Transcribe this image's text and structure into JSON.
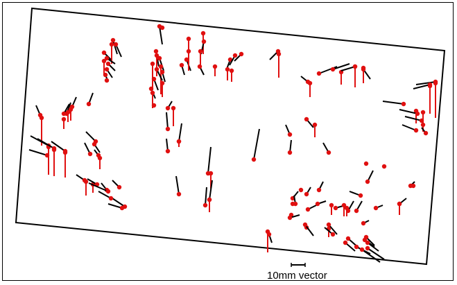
{
  "scale_bar": {
    "label": "10mm vector"
  },
  "colors": {
    "outline": "#000000",
    "point": "#e01010",
    "vector_black": "#000000",
    "vector_red": "#e01010"
  },
  "vectors": [
    {
      "id": "v1"
    },
    {
      "id": "v2"
    },
    {
      "id": "v3"
    },
    {
      "id": "v4"
    },
    {
      "id": "v5"
    },
    {
      "id": "v6"
    },
    {
      "id": "v7"
    },
    {
      "id": "v8"
    },
    {
      "id": "v9"
    },
    {
      "id": "v10"
    },
    {
      "id": "v11"
    },
    {
      "id": "v12"
    },
    {
      "id": "v13"
    },
    {
      "id": "v14"
    },
    {
      "id": "v15"
    },
    {
      "id": "v16"
    },
    {
      "id": "v17"
    },
    {
      "id": "v18"
    },
    {
      "id": "v19"
    },
    {
      "id": "v20"
    },
    {
      "id": "v21"
    },
    {
      "id": "v22"
    },
    {
      "id": "v23"
    },
    {
      "id": "v24"
    },
    {
      "id": "v25"
    },
    {
      "id": "v26"
    },
    {
      "id": "v27"
    },
    {
      "id": "v28"
    },
    {
      "id": "v29"
    },
    {
      "id": "v30"
    },
    {
      "id": "v31"
    },
    {
      "id": "v32"
    },
    {
      "id": "v33"
    },
    {
      "id": "v34"
    },
    {
      "id": "v35"
    },
    {
      "id": "v36"
    },
    {
      "id": "v37"
    },
    {
      "id": "v38"
    },
    {
      "id": "v39"
    },
    {
      "id": "v40"
    },
    {
      "id": "v41"
    },
    {
      "id": "v42"
    },
    {
      "id": "v43"
    },
    {
      "id": "v44"
    },
    {
      "id": "v45"
    },
    {
      "id": "v46"
    },
    {
      "id": "v47"
    },
    {
      "id": "v48"
    },
    {
      "id": "v49"
    },
    {
      "id": "v50"
    },
    {
      "id": "v51"
    },
    {
      "id": "v52"
    },
    {
      "id": "v53"
    },
    {
      "id": "v54"
    },
    {
      "id": "v55"
    },
    {
      "id": "v56"
    },
    {
      "id": "v57"
    },
    {
      "id": "v58"
    },
    {
      "id": "v59"
    },
    {
      "id": "v60"
    },
    {
      "id": "v61"
    },
    {
      "id": "v62"
    },
    {
      "id": "v63"
    },
    {
      "id": "v64"
    },
    {
      "id": "v65"
    },
    {
      "id": "v66"
    },
    {
      "id": "v67"
    },
    {
      "id": "v68"
    },
    {
      "id": "v69"
    },
    {
      "id": "v70"
    },
    {
      "id": "v71"
    },
    {
      "id": "v72"
    },
    {
      "id": "v73"
    },
    {
      "id": "v74"
    },
    {
      "id": "v75"
    },
    {
      "id": "v76"
    },
    {
      "id": "v77"
    },
    {
      "id": "v78"
    },
    {
      "id": "v79"
    },
    {
      "id": "v80"
    },
    {
      "id": "v81"
    },
    {
      "id": "v82"
    },
    {
      "id": "v83"
    },
    {
      "id": "v84"
    },
    {
      "id": "v85"
    },
    {
      "id": "v86"
    },
    {
      "id": "v87"
    },
    {
      "id": "v88"
    },
    {
      "id": "v89"
    },
    {
      "id": "v90"
    },
    {
      "id": "v91"
    },
    {
      "id": "v92"
    },
    {
      "id": "v93"
    },
    {
      "id": "v94"
    },
    {
      "id": "v95"
    },
    {
      "id": "v96"
    },
    {
      "id": "v97"
    },
    {
      "id": "v98"
    },
    {
      "id": "v99"
    },
    {
      "id": "v100"
    },
    {
      "id": "v101"
    },
    {
      "id": "v102"
    },
    {
      "id": "v103"
    },
    {
      "id": "v104"
    },
    {
      "id": "v105"
    },
    {
      "id": "v106"
    },
    {
      "id": "v107"
    },
    {
      "id": "v108"
    },
    {
      "id": "v109"
    },
    {
      "id": "v110"
    },
    {
      "id": "v111"
    },
    {
      "id": "v112"
    },
    {
      "id": "v113"
    },
    {
      "id": "v114"
    },
    {
      "id": "v115"
    },
    {
      "id": "v116"
    },
    {
      "id": "v117"
    },
    {
      "id": "v118"
    },
    {
      "id": "v119"
    },
    {
      "id": "v120"
    },
    {
      "id": "v121"
    },
    {
      "id": "v122"
    },
    {
      "id": "v123"
    },
    {
      "id": "v124"
    },
    {
      "id": "v125"
    },
    {
      "id": "v126"
    },
    {
      "id": "v127"
    },
    {
      "id": "v128"
    },
    {
      "id": "v129"
    },
    {
      "id": "v130"
    },
    {
      "id": "v131"
    },
    {
      "id": "v132"
    },
    {
      "id": "v133"
    },
    {
      "id": "v134"
    },
    {
      "id": "v135"
    },
    {
      "id": "v136"
    },
    {
      "id": "v137"
    },
    {
      "id": "v138"
    },
    {
      "id": "v139"
    },
    {
      "id": "v140"
    },
    {
      "id": "v141"
    },
    {
      "id": "v142"
    },
    {
      "id": "v143"
    },
    {
      "id": "v144"
    },
    {
      "id": "v145"
    },
    {
      "id": "v146"
    },
    {
      "id": "v147"
    },
    {
      "id": "v148"
    },
    {
      "id": "v149"
    },
    {
      "id": "v150"
    },
    {
      "id": "v151"
    },
    {
      "id": "v152"
    },
    {
      "id": "v153"
    },
    {
      "id": "v154"
    },
    {
      "id": "v155"
    },
    {
      "id": "v156"
    },
    {
      "id": "v157"
    },
    {
      "id": "v158"
    },
    {
      "id": "v159"
    },
    {
      "id": "v160"
    },
    {
      "id": "v161"
    },
    {
      "id": "v162"
    },
    {
      "id": "v163"
    },
    {
      "id": "v164"
    },
    {
      "id": "v165"
    },
    {
      "id": "v166"
    },
    {
      "id": "v167"
    },
    {
      "id": "v168"
    },
    {
      "id": "v169"
    },
    {
      "id": "v170"
    }
  ]
}
